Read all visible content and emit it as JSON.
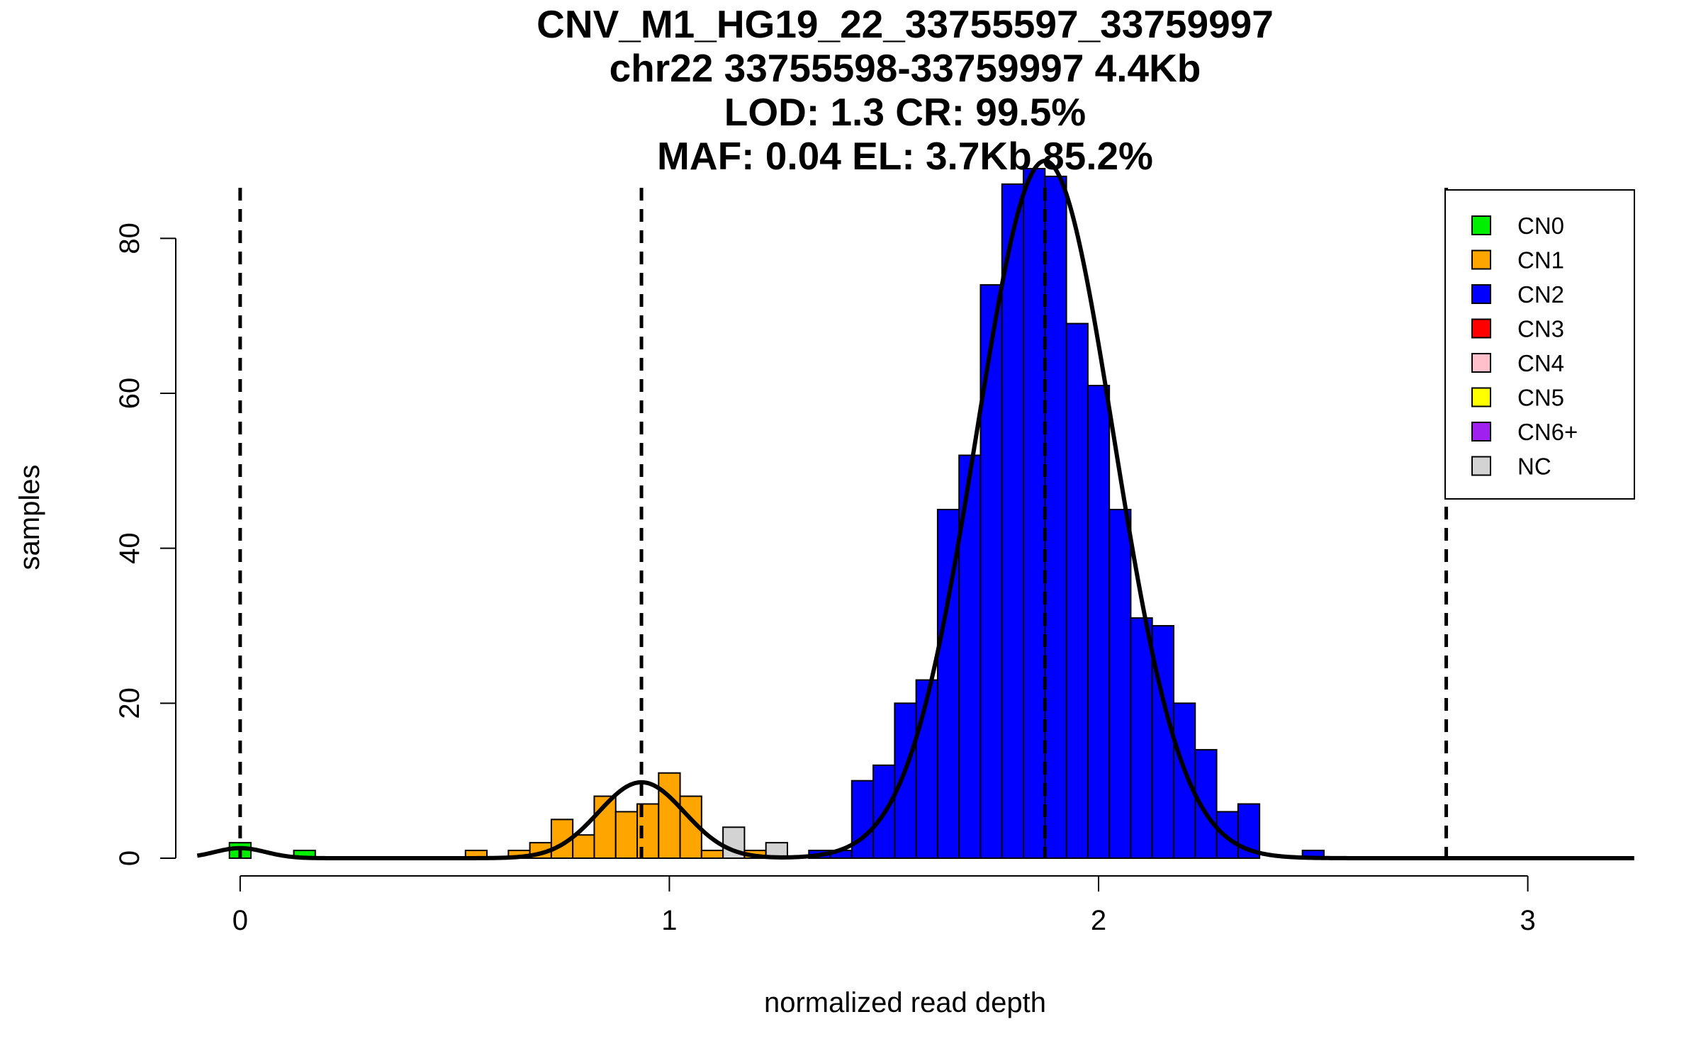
{
  "chart_data": {
    "type": "bar",
    "subtype": "histogram",
    "title_lines": [
      "CNV_M1_HG19_22_33755597_33759997",
      "chr22 33755598-33759997 4.4Kb",
      "LOD: 1.3 CR: 99.5%",
      "MAF: 0.04 EL: 3.7Kb 85.2%"
    ],
    "xlabel": "normalized read depth",
    "ylabel": "samples",
    "xlim": [
      -0.15,
      3.25
    ],
    "ylim": [
      0,
      90
    ],
    "x_ticks": [
      0,
      1,
      2,
      3
    ],
    "x_tick_labels": [
      "0",
      "1",
      "2",
      "3"
    ],
    "y_ticks": [
      0,
      20,
      40,
      60,
      80
    ],
    "y_tick_labels": [
      "0",
      "20",
      "40",
      "60",
      "80"
    ],
    "bin_width": 0.05,
    "class_colors": {
      "CN0": "#00ee00",
      "CN1": "#ffa500",
      "CN2": "#0000ff",
      "CN3": "#ff0000",
      "CN4": "#ffc0cb",
      "CN5": "#ffff00",
      "CN6+": "#a020f0",
      "NC": "#d3d3d3"
    },
    "bars": [
      {
        "x0": -0.025,
        "x1": 0.025,
        "value": 2,
        "class": "CN0"
      },
      {
        "x0": 0.125,
        "x1": 0.175,
        "value": 1,
        "class": "CN0"
      },
      {
        "x0": 0.525,
        "x1": 0.575,
        "value": 1,
        "class": "CN1"
      },
      {
        "x0": 0.625,
        "x1": 0.675,
        "value": 1,
        "class": "CN1"
      },
      {
        "x0": 0.675,
        "x1": 0.725,
        "value": 2,
        "class": "CN1"
      },
      {
        "x0": 0.725,
        "x1": 0.775,
        "value": 5,
        "class": "CN1"
      },
      {
        "x0": 0.775,
        "x1": 0.825,
        "value": 3,
        "class": "CN1"
      },
      {
        "x0": 0.825,
        "x1": 0.875,
        "value": 8,
        "class": "CN1"
      },
      {
        "x0": 0.875,
        "x1": 0.925,
        "value": 6,
        "class": "CN1"
      },
      {
        "x0": 0.925,
        "x1": 0.975,
        "value": 7,
        "class": "CN1"
      },
      {
        "x0": 0.975,
        "x1": 1.025,
        "value": 11,
        "class": "CN1"
      },
      {
        "x0": 1.025,
        "x1": 1.075,
        "value": 8,
        "class": "CN1"
      },
      {
        "x0": 1.075,
        "x1": 1.125,
        "value": 1,
        "class": "CN1"
      },
      {
        "x0": 1.125,
        "x1": 1.175,
        "value": 4,
        "class": "NC"
      },
      {
        "x0": 1.175,
        "x1": 1.225,
        "value": 1,
        "class": "CN1"
      },
      {
        "x0": 1.225,
        "x1": 1.275,
        "value": 2,
        "class": "NC"
      },
      {
        "x0": 1.325,
        "x1": 1.375,
        "value": 1,
        "class": "CN2"
      },
      {
        "x0": 1.375,
        "x1": 1.425,
        "value": 1,
        "class": "CN2"
      },
      {
        "x0": 1.425,
        "x1": 1.475,
        "value": 10,
        "class": "CN2"
      },
      {
        "x0": 1.475,
        "x1": 1.525,
        "value": 12,
        "class": "CN2"
      },
      {
        "x0": 1.525,
        "x1": 1.575,
        "value": 20,
        "class": "CN2"
      },
      {
        "x0": 1.575,
        "x1": 1.625,
        "value": 23,
        "class": "CN2"
      },
      {
        "x0": 1.625,
        "x1": 1.675,
        "value": 45,
        "class": "CN2"
      },
      {
        "x0": 1.675,
        "x1": 1.725,
        "value": 52,
        "class": "CN2"
      },
      {
        "x0": 1.725,
        "x1": 1.775,
        "value": 74,
        "class": "CN2"
      },
      {
        "x0": 1.775,
        "x1": 1.825,
        "value": 87,
        "class": "CN2"
      },
      {
        "x0": 1.825,
        "x1": 1.875,
        "value": 89,
        "class": "CN2"
      },
      {
        "x0": 1.875,
        "x1": 1.925,
        "value": 88,
        "class": "CN2"
      },
      {
        "x0": 1.925,
        "x1": 1.975,
        "value": 69,
        "class": "CN2"
      },
      {
        "x0": 1.975,
        "x1": 2.025,
        "value": 61,
        "class": "CN2"
      },
      {
        "x0": 2.025,
        "x1": 2.075,
        "value": 45,
        "class": "CN2"
      },
      {
        "x0": 2.075,
        "x1": 2.125,
        "value": 31,
        "class": "CN2"
      },
      {
        "x0": 2.125,
        "x1": 2.175,
        "value": 30,
        "class": "CN2"
      },
      {
        "x0": 2.175,
        "x1": 2.225,
        "value": 20,
        "class": "CN2"
      },
      {
        "x0": 2.225,
        "x1": 2.275,
        "value": 14,
        "class": "CN2"
      },
      {
        "x0": 2.275,
        "x1": 2.325,
        "value": 6,
        "class": "CN2"
      },
      {
        "x0": 2.325,
        "x1": 2.375,
        "value": 7,
        "class": "CN2"
      },
      {
        "x0": 2.475,
        "x1": 2.525,
        "value": 1,
        "class": "CN2"
      }
    ],
    "density_curves": [
      {
        "name": "CN0 fit",
        "mean": 0.0,
        "sd": 0.06,
        "peak": 1.3
      },
      {
        "name": "CN1 fit",
        "mean": 0.935,
        "sd": 0.1,
        "peak": 9.8
      },
      {
        "name": "CN2 fit",
        "mean": 1.875,
        "sd": 0.16,
        "peak": 90
      }
    ],
    "dashed_lines_x": [
      0,
      0.935,
      1.875,
      2.81
    ],
    "legend": {
      "position": "top-right",
      "entries": [
        "CN0",
        "CN1",
        "CN2",
        "CN3",
        "CN4",
        "CN5",
        "CN6+",
        "NC"
      ]
    }
  }
}
